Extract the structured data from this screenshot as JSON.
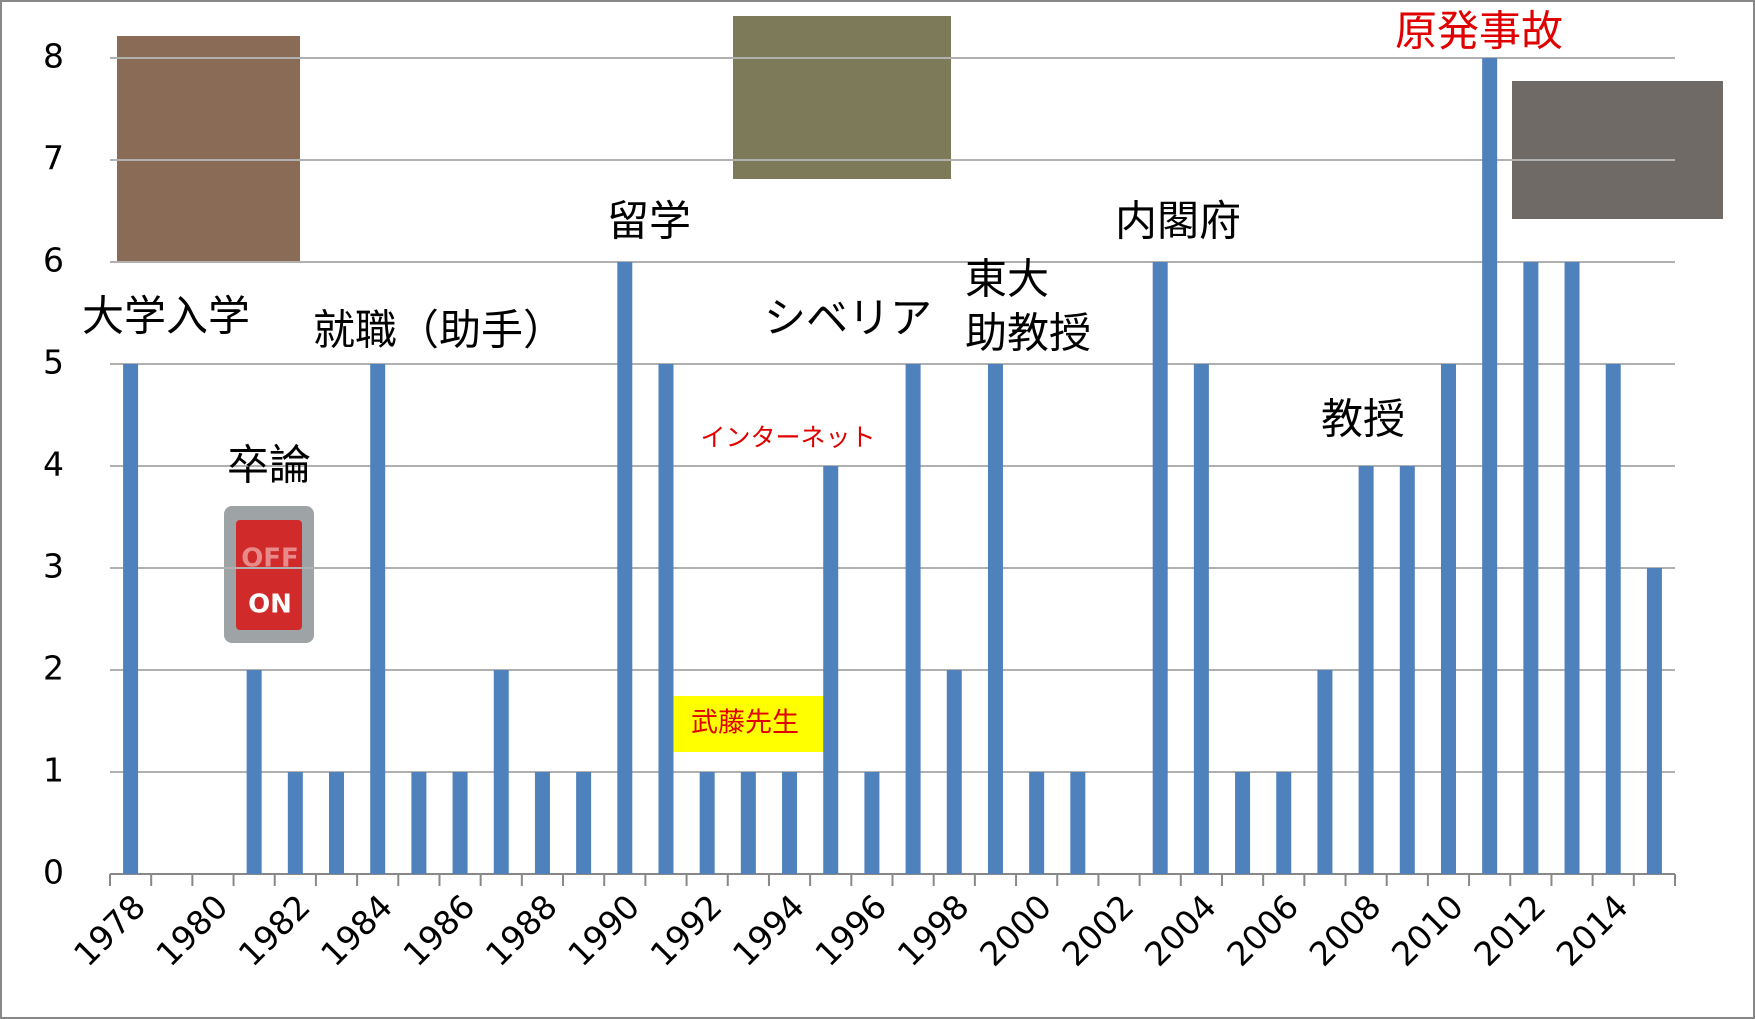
{
  "chart_data": {
    "type": "bar",
    "categories": [
      "1978",
      null,
      "1980",
      null,
      "1982",
      null,
      "1984",
      null,
      "1986",
      null,
      "1988",
      null,
      "1990",
      null,
      "1992",
      null,
      "1994",
      null,
      "1996",
      null,
      "1998",
      null,
      "2000",
      null,
      "2002",
      null,
      "2004",
      null,
      "2006",
      null,
      "2008",
      null,
      "2010",
      null,
      "2012",
      null,
      "2014",
      null
    ],
    "values": [
      5,
      0,
      0,
      2,
      1,
      1,
      5,
      1,
      1,
      2,
      1,
      1,
      6,
      5,
      1,
      1,
      1,
      4,
      1,
      5,
      2,
      5,
      1,
      1,
      0,
      6,
      5,
      1,
      1,
      2,
      4,
      4,
      5,
      8,
      6,
      6,
      5,
      3
    ],
    "color": "#4f81bd",
    "ylim": [
      0,
      8
    ],
    "yticks": [
      0,
      1,
      2,
      3,
      4,
      5,
      6,
      7,
      8
    ],
    "grid": true,
    "annotations": [
      "大学入学",
      "卒論",
      "就職（助手）",
      "留学",
      "インターネット",
      "武藤先生",
      "シベリア",
      "東大",
      "助教授",
      "内閣府",
      "教授",
      "原発事故"
    ],
    "switch_labels": [
      "OFF",
      "ON"
    ]
  }
}
